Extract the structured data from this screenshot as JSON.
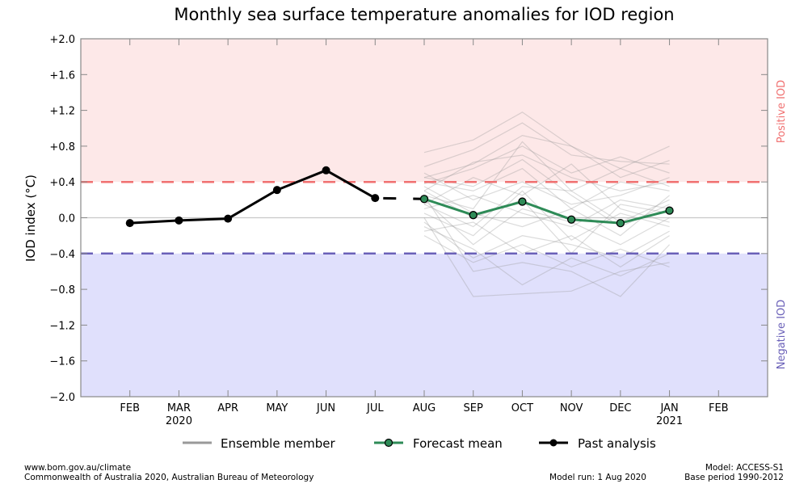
{
  "chart_data": {
    "type": "line",
    "title": "Monthly sea surface temperature anomalies for IOD region",
    "ylabel": "IOD index (°C)",
    "xlabel": "",
    "ylim": [
      -2.0,
      2.0
    ],
    "yticks": [
      "+2.0",
      "+1.6",
      "+1.2",
      "+0.8",
      "+0.4",
      "0.0",
      "−0.4",
      "−0.8",
      "−1.2",
      "−1.6",
      "−2.0"
    ],
    "ytick_values": [
      2.0,
      1.6,
      1.2,
      0.8,
      0.4,
      0.0,
      -0.4,
      -0.8,
      -1.2,
      -1.6,
      -2.0
    ],
    "xlim": [
      -1,
      13
    ],
    "categories": [
      "FEB",
      "MAR",
      "APR",
      "MAY",
      "JUN",
      "JUL",
      "AUG",
      "SEP",
      "OCT",
      "NOV",
      "DEC",
      "JAN",
      "FEB"
    ],
    "year_labels": [
      {
        "index": 1,
        "label": "2020"
      },
      {
        "index": 11,
        "label": "2021"
      }
    ],
    "thresholds": {
      "positive": 0.4,
      "negative": -0.4
    },
    "region_labels": {
      "positive": "Positive IOD",
      "negative": "Negative IOD"
    },
    "colors": {
      "positive_fill": "#fde8e8",
      "negative_fill": "#e0e0fc",
      "positive_line": "#f07070",
      "negative_line": "#6a60b8",
      "forecast": "#2e8b57",
      "past": "#000000",
      "ensemble": "#999999",
      "positive_text": "#f07070",
      "negative_text": "#6a60b8"
    },
    "series": [
      {
        "name": "Past analysis",
        "x": [
          0,
          1,
          2,
          3,
          4,
          5
        ],
        "values": [
          -0.06,
          -0.03,
          -0.01,
          0.31,
          0.53,
          0.22
        ]
      },
      {
        "name": "Forecast mean",
        "x": [
          6,
          7,
          8,
          9,
          10,
          11
        ],
        "values": [
          0.21,
          0.03,
          0.18,
          -0.02,
          -0.06,
          0.08
        ]
      }
    ],
    "ensemble_x": [
      6,
      7,
      8,
      9,
      10,
      11
    ],
    "ensemble": [
      [
        0.73,
        0.87,
        1.18,
        0.8,
        0.55,
        0.8
      ],
      [
        0.57,
        0.76,
        1.06,
        0.7,
        0.63,
        0.6
      ],
      [
        0.45,
        0.6,
        0.92,
        0.8,
        0.45,
        0.64
      ],
      [
        0.38,
        0.55,
        0.8,
        0.5,
        0.68,
        0.5
      ],
      [
        0.3,
        0.62,
        0.7,
        0.45,
        0.3,
        0.4
      ],
      [
        0.25,
        0.1,
        0.85,
        0.3,
        0.55,
        0.35
      ],
      [
        0.5,
        0.2,
        0.4,
        0.15,
        0.25,
        0.45
      ],
      [
        0.15,
        -0.1,
        0.35,
        0.3,
        -0.05,
        0.2
      ],
      [
        0.1,
        0.25,
        0.05,
        -0.1,
        0.2,
        0.1
      ],
      [
        0.05,
        -0.2,
        0.3,
        -0.25,
        0.05,
        -0.1
      ],
      [
        0.2,
        -0.3,
        0.1,
        -0.05,
        -0.3,
        0.0
      ],
      [
        0.35,
        0.05,
        -0.1,
        0.1,
        -0.2,
        0.25
      ],
      [
        -0.05,
        -0.45,
        -0.2,
        -0.3,
        -0.45,
        -0.15
      ],
      [
        0.0,
        -0.88,
        -0.85,
        -0.82,
        -0.6,
        -0.5
      ],
      [
        -0.1,
        -0.35,
        -0.75,
        -0.45,
        -0.65,
        -0.4
      ],
      [
        0.25,
        -0.6,
        -0.5,
        -0.6,
        -0.88,
        -0.3
      ],
      [
        -0.2,
        -0.5,
        -0.3,
        -0.55,
        -0.35,
        -0.55
      ],
      [
        0.4,
        0.3,
        0.55,
        0.1,
        0.4,
        0.3
      ],
      [
        0.15,
        0.45,
        0.25,
        0.6,
        0.1,
        -0.05
      ],
      [
        -0.15,
        -0.05,
        -0.4,
        -0.2,
        -0.55,
        -0.2
      ],
      [
        0.3,
        0.0,
        0.2,
        -0.4,
        0.15,
        0.05
      ],
      [
        0.45,
        0.35,
        0.65,
        0.25,
        -0.1,
        0.15
      ]
    ],
    "legend": {
      "placement": "bottom",
      "entries": [
        "Ensemble member",
        "Forecast mean",
        "Past analysis"
      ]
    },
    "grid": false
  },
  "footer": {
    "website": "www.bom.gov.au/climate",
    "copyright": "Commonwealth of Australia 2020, Australian Bureau of Meteorology",
    "model_run": "Model run: 1 Aug 2020",
    "model": "Model: ACCESS-S1",
    "base_period": "Base period 1990-2012"
  }
}
